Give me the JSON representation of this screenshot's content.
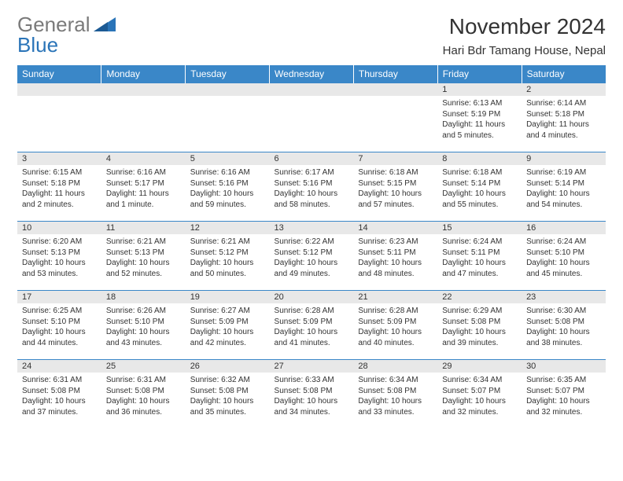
{
  "logo": {
    "text_gray": "General",
    "text_blue": "Blue"
  },
  "title": "November 2024",
  "location": "Hari Bdr Tamang House, Nepal",
  "colors": {
    "header_bg": "#3a87c8",
    "header_text": "#ffffff",
    "daynum_bg": "#e8e8e8",
    "border": "#3a87c8",
    "text": "#333333",
    "logo_gray": "#7a7a7a",
    "logo_blue": "#2a74b8"
  },
  "weekdays": [
    "Sunday",
    "Monday",
    "Tuesday",
    "Wednesday",
    "Thursday",
    "Friday",
    "Saturday"
  ],
  "weeks": [
    [
      null,
      null,
      null,
      null,
      null,
      {
        "n": "1",
        "sr": "Sunrise: 6:13 AM",
        "ss": "Sunset: 5:19 PM",
        "dl": "Daylight: 11 hours and 5 minutes."
      },
      {
        "n": "2",
        "sr": "Sunrise: 6:14 AM",
        "ss": "Sunset: 5:18 PM",
        "dl": "Daylight: 11 hours and 4 minutes."
      }
    ],
    [
      {
        "n": "3",
        "sr": "Sunrise: 6:15 AM",
        "ss": "Sunset: 5:18 PM",
        "dl": "Daylight: 11 hours and 2 minutes."
      },
      {
        "n": "4",
        "sr": "Sunrise: 6:16 AM",
        "ss": "Sunset: 5:17 PM",
        "dl": "Daylight: 11 hours and 1 minute."
      },
      {
        "n": "5",
        "sr": "Sunrise: 6:16 AM",
        "ss": "Sunset: 5:16 PM",
        "dl": "Daylight: 10 hours and 59 minutes."
      },
      {
        "n": "6",
        "sr": "Sunrise: 6:17 AM",
        "ss": "Sunset: 5:16 PM",
        "dl": "Daylight: 10 hours and 58 minutes."
      },
      {
        "n": "7",
        "sr": "Sunrise: 6:18 AM",
        "ss": "Sunset: 5:15 PM",
        "dl": "Daylight: 10 hours and 57 minutes."
      },
      {
        "n": "8",
        "sr": "Sunrise: 6:18 AM",
        "ss": "Sunset: 5:14 PM",
        "dl": "Daylight: 10 hours and 55 minutes."
      },
      {
        "n": "9",
        "sr": "Sunrise: 6:19 AM",
        "ss": "Sunset: 5:14 PM",
        "dl": "Daylight: 10 hours and 54 minutes."
      }
    ],
    [
      {
        "n": "10",
        "sr": "Sunrise: 6:20 AM",
        "ss": "Sunset: 5:13 PM",
        "dl": "Daylight: 10 hours and 53 minutes."
      },
      {
        "n": "11",
        "sr": "Sunrise: 6:21 AM",
        "ss": "Sunset: 5:13 PM",
        "dl": "Daylight: 10 hours and 52 minutes."
      },
      {
        "n": "12",
        "sr": "Sunrise: 6:21 AM",
        "ss": "Sunset: 5:12 PM",
        "dl": "Daylight: 10 hours and 50 minutes."
      },
      {
        "n": "13",
        "sr": "Sunrise: 6:22 AM",
        "ss": "Sunset: 5:12 PM",
        "dl": "Daylight: 10 hours and 49 minutes."
      },
      {
        "n": "14",
        "sr": "Sunrise: 6:23 AM",
        "ss": "Sunset: 5:11 PM",
        "dl": "Daylight: 10 hours and 48 minutes."
      },
      {
        "n": "15",
        "sr": "Sunrise: 6:24 AM",
        "ss": "Sunset: 5:11 PM",
        "dl": "Daylight: 10 hours and 47 minutes."
      },
      {
        "n": "16",
        "sr": "Sunrise: 6:24 AM",
        "ss": "Sunset: 5:10 PM",
        "dl": "Daylight: 10 hours and 45 minutes."
      }
    ],
    [
      {
        "n": "17",
        "sr": "Sunrise: 6:25 AM",
        "ss": "Sunset: 5:10 PM",
        "dl": "Daylight: 10 hours and 44 minutes."
      },
      {
        "n": "18",
        "sr": "Sunrise: 6:26 AM",
        "ss": "Sunset: 5:10 PM",
        "dl": "Daylight: 10 hours and 43 minutes."
      },
      {
        "n": "19",
        "sr": "Sunrise: 6:27 AM",
        "ss": "Sunset: 5:09 PM",
        "dl": "Daylight: 10 hours and 42 minutes."
      },
      {
        "n": "20",
        "sr": "Sunrise: 6:28 AM",
        "ss": "Sunset: 5:09 PM",
        "dl": "Daylight: 10 hours and 41 minutes."
      },
      {
        "n": "21",
        "sr": "Sunrise: 6:28 AM",
        "ss": "Sunset: 5:09 PM",
        "dl": "Daylight: 10 hours and 40 minutes."
      },
      {
        "n": "22",
        "sr": "Sunrise: 6:29 AM",
        "ss": "Sunset: 5:08 PM",
        "dl": "Daylight: 10 hours and 39 minutes."
      },
      {
        "n": "23",
        "sr": "Sunrise: 6:30 AM",
        "ss": "Sunset: 5:08 PM",
        "dl": "Daylight: 10 hours and 38 minutes."
      }
    ],
    [
      {
        "n": "24",
        "sr": "Sunrise: 6:31 AM",
        "ss": "Sunset: 5:08 PM",
        "dl": "Daylight: 10 hours and 37 minutes."
      },
      {
        "n": "25",
        "sr": "Sunrise: 6:31 AM",
        "ss": "Sunset: 5:08 PM",
        "dl": "Daylight: 10 hours and 36 minutes."
      },
      {
        "n": "26",
        "sr": "Sunrise: 6:32 AM",
        "ss": "Sunset: 5:08 PM",
        "dl": "Daylight: 10 hours and 35 minutes."
      },
      {
        "n": "27",
        "sr": "Sunrise: 6:33 AM",
        "ss": "Sunset: 5:08 PM",
        "dl": "Daylight: 10 hours and 34 minutes."
      },
      {
        "n": "28",
        "sr": "Sunrise: 6:34 AM",
        "ss": "Sunset: 5:08 PM",
        "dl": "Daylight: 10 hours and 33 minutes."
      },
      {
        "n": "29",
        "sr": "Sunrise: 6:34 AM",
        "ss": "Sunset: 5:07 PM",
        "dl": "Daylight: 10 hours and 32 minutes."
      },
      {
        "n": "30",
        "sr": "Sunrise: 6:35 AM",
        "ss": "Sunset: 5:07 PM",
        "dl": "Daylight: 10 hours and 32 minutes."
      }
    ]
  ]
}
